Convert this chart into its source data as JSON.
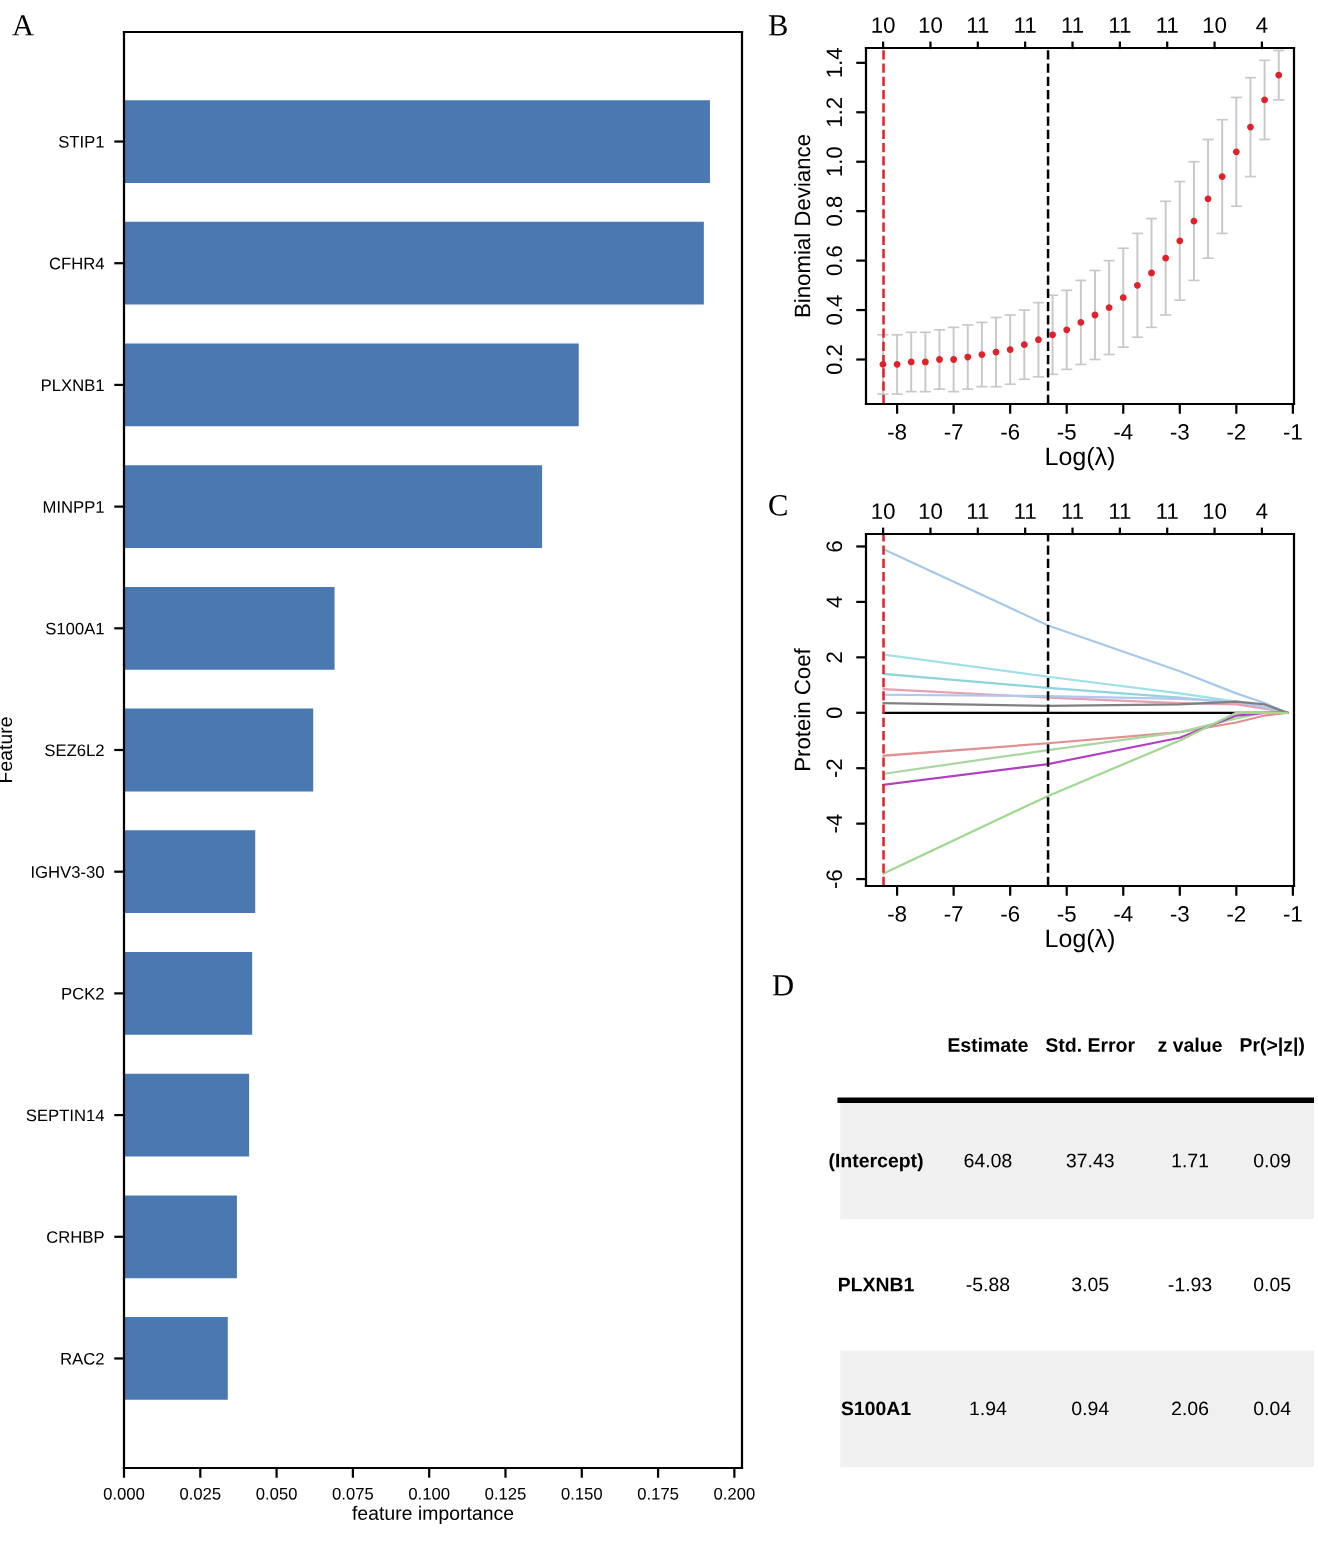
{
  "chart_data": [
    {
      "type": "bar",
      "title": "A",
      "orientation": "horizontal",
      "xlabel": "feature importance",
      "ylabel": "Feature",
      "categories": [
        "STIP1",
        "CFHR4",
        "PLXNB1",
        "MINPP1",
        "S100A1",
        "SEZ6L2",
        "IGHV3-30",
        "PCK2",
        "SEPTIN14",
        "CRHBP",
        "RAC2"
      ],
      "values": [
        0.192,
        0.19,
        0.149,
        0.137,
        0.069,
        0.062,
        0.043,
        0.042,
        0.041,
        0.037,
        0.034
      ],
      "color": "#4a78b0",
      "xlim": [
        0,
        0.2025
      ],
      "xticks": [
        {
          "value": 0,
          "label": "0.000"
        },
        {
          "value": 0.025,
          "label": "0.025"
        },
        {
          "value": 0.05,
          "label": "0.050"
        },
        {
          "value": 0.075,
          "label": "0.075"
        },
        {
          "value": 0.1,
          "label": "0.100"
        },
        {
          "value": 0.125,
          "label": "0.125"
        },
        {
          "value": 0.15,
          "label": "0.150"
        },
        {
          "value": 0.175,
          "label": "0.175"
        },
        {
          "value": 0.2,
          "label": "0.200"
        }
      ]
    },
    {
      "type": "scatter",
      "title": "B",
      "xlabel": "Log(λ)",
      "ylabel": "Binomial Deviance",
      "marker": "circle",
      "series": [
        {
          "color": "#e0202b",
          "x": [
            -8.25,
            -8.0,
            -7.75,
            -7.5,
            -7.25,
            -7.0,
            -6.75,
            -6.5,
            -6.25,
            -6.0,
            -5.75,
            -5.5,
            -5.25,
            -5.0,
            -4.75,
            -4.5,
            -4.25,
            -4.0,
            -3.75,
            -3.5,
            -3.25,
            -3.0,
            -2.75,
            -2.5,
            -2.25,
            -2.0,
            -1.75,
            -1.5,
            -1.25
          ],
          "values": [
            0.18,
            0.18,
            0.19,
            0.19,
            0.2,
            0.2,
            0.21,
            0.22,
            0.23,
            0.24,
            0.26,
            0.28,
            0.3,
            0.32,
            0.35,
            0.38,
            0.41,
            0.45,
            0.5,
            0.55,
            0.61,
            0.68,
            0.76,
            0.85,
            0.94,
            1.04,
            1.14,
            1.25,
            1.35
          ],
          "errors": [
            0.12,
            0.12,
            0.12,
            0.12,
            0.12,
            0.13,
            0.13,
            0.13,
            0.14,
            0.14,
            0.14,
            0.15,
            0.16,
            0.16,
            0.17,
            0.18,
            0.19,
            0.2,
            0.21,
            0.22,
            0.23,
            0.24,
            0.24,
            0.24,
            0.23,
            0.22,
            0.2,
            0.16,
            0.1
          ]
        }
      ],
      "xlim": [
        -8.55,
        -0.98
      ],
      "xticks": [
        -8,
        -7,
        -6,
        -5,
        -4,
        -3,
        -2,
        -1
      ],
      "ylim": [
        0.02,
        1.46
      ],
      "yticks": [
        0.2,
        0.4,
        0.6,
        0.8,
        {
          "value": 1.0,
          "label": "1.0"
        },
        1.2,
        1.4
      ],
      "annotations": [
        "10",
        "10",
        "11",
        "11",
        "11",
        "11",
        "11",
        "10",
        "4"
      ],
      "ref_lines": [
        {
          "axis": "x",
          "value": -8.24,
          "color": "#e0202b",
          "line_style": "dashed"
        },
        {
          "axis": "x",
          "value": -5.33,
          "color": "#000000",
          "line_style": "dashed"
        }
      ]
    },
    {
      "type": "line",
      "title": "C",
      "xlabel": "Log(λ)",
      "ylabel": "Protein Coef",
      "series": [
        {
          "color": "#a6c8ea",
          "x": [
            -8.24,
            -5.33,
            -3,
            -2,
            -1.5,
            -1.1
          ],
          "values": [
            5.9,
            3.15,
            1.5,
            0.7,
            0.35,
            0
          ]
        },
        {
          "color": "#9fdfe8",
          "x": [
            -8.24,
            -5.33,
            -3,
            -2,
            -1.5,
            -1.1
          ],
          "values": [
            2.1,
            1.3,
            0.7,
            0.4,
            0.2,
            0
          ]
        },
        {
          "color": "#8fd4dc",
          "x": [
            -8.24,
            -5.33,
            -3,
            -2,
            -1.5,
            -1.1
          ],
          "values": [
            1.4,
            0.9,
            0.55,
            0.35,
            0.2,
            0
          ]
        },
        {
          "color": "#e8a0b0",
          "x": [
            -8.24,
            -5.33,
            -3,
            -2,
            -1.5,
            -1.1
          ],
          "values": [
            0.85,
            0.55,
            0.35,
            0.3,
            0.15,
            0
          ]
        },
        {
          "color": "#b0c8f0",
          "x": [
            -8.24,
            -5.33,
            -3,
            -2,
            -1.5,
            -1.1
          ],
          "values": [
            0.65,
            0.6,
            0.5,
            0.4,
            0.2,
            0
          ]
        },
        {
          "color": "#808080",
          "x": [
            -8.24,
            -5.33,
            -3,
            -2,
            -1.5,
            -1.1
          ],
          "values": [
            0.35,
            0.25,
            0.3,
            0.4,
            0.3,
            0
          ]
        },
        {
          "color": "#000000",
          "x": [
            -8.24,
            -5.33,
            -3,
            -2,
            -1.5,
            -1.1
          ],
          "values": [
            0,
            0,
            0,
            0,
            0,
            0
          ]
        },
        {
          "color": "#e09090",
          "x": [
            -8.24,
            -5.33,
            -3,
            -2,
            -1.5,
            -1.1
          ],
          "values": [
            -1.55,
            -1.1,
            -0.7,
            -0.35,
            -0.1,
            0
          ]
        },
        {
          "color": "#a8d8a0",
          "x": [
            -8.24,
            -5.33,
            -3,
            -2,
            -1.5,
            -1.1
          ],
          "values": [
            -2.2,
            -1.35,
            -0.7,
            -0.2,
            0,
            0
          ]
        },
        {
          "color": "#b040c0",
          "x": [
            -8.24,
            -5.33,
            -3,
            -2,
            -1.5,
            -1.1
          ],
          "values": [
            -2.6,
            -1.85,
            -0.9,
            -0.1,
            0,
            0
          ]
        },
        {
          "color": "#a0d890",
          "x": [
            -8.24,
            -5.33,
            -3,
            -2,
            -1.5,
            -1.1
          ],
          "values": [
            -5.8,
            -3.0,
            -1.0,
            0,
            0,
            0
          ]
        }
      ],
      "xlim": [
        -8.55,
        -0.98
      ],
      "xticks": [
        -8,
        -7,
        -6,
        -5,
        -4,
        -3,
        -2,
        -1
      ],
      "ylim": [
        -6.25,
        6.45
      ],
      "yticks": [
        -6,
        -4,
        -2,
        0,
        2,
        4,
        6
      ],
      "annotations": [
        "10",
        "10",
        "11",
        "11",
        "11",
        "11",
        "11",
        "10",
        "4"
      ],
      "ref_lines": [
        {
          "axis": "x",
          "value": -8.24,
          "color": "#e0202b",
          "line_style": "dashed"
        },
        {
          "axis": "x",
          "value": -5.33,
          "color": "#000000",
          "line_style": "dashed"
        }
      ]
    },
    {
      "type": "other",
      "title": "D",
      "categories": [
        "Estimate",
        "Std. Error",
        "z value",
        "Pr(>|z|)"
      ],
      "y_categories": [
        "(Intercept)",
        "PLXNB1",
        "S100A1"
      ],
      "cell_labels": [
        [
          "64.08",
          "37.43",
          "1.71",
          "0.09"
        ],
        [
          "-5.88",
          "3.05",
          "-1.93",
          "0.05"
        ],
        [
          "1.94",
          "0.94",
          "2.06",
          "0.04"
        ]
      ]
    }
  ]
}
